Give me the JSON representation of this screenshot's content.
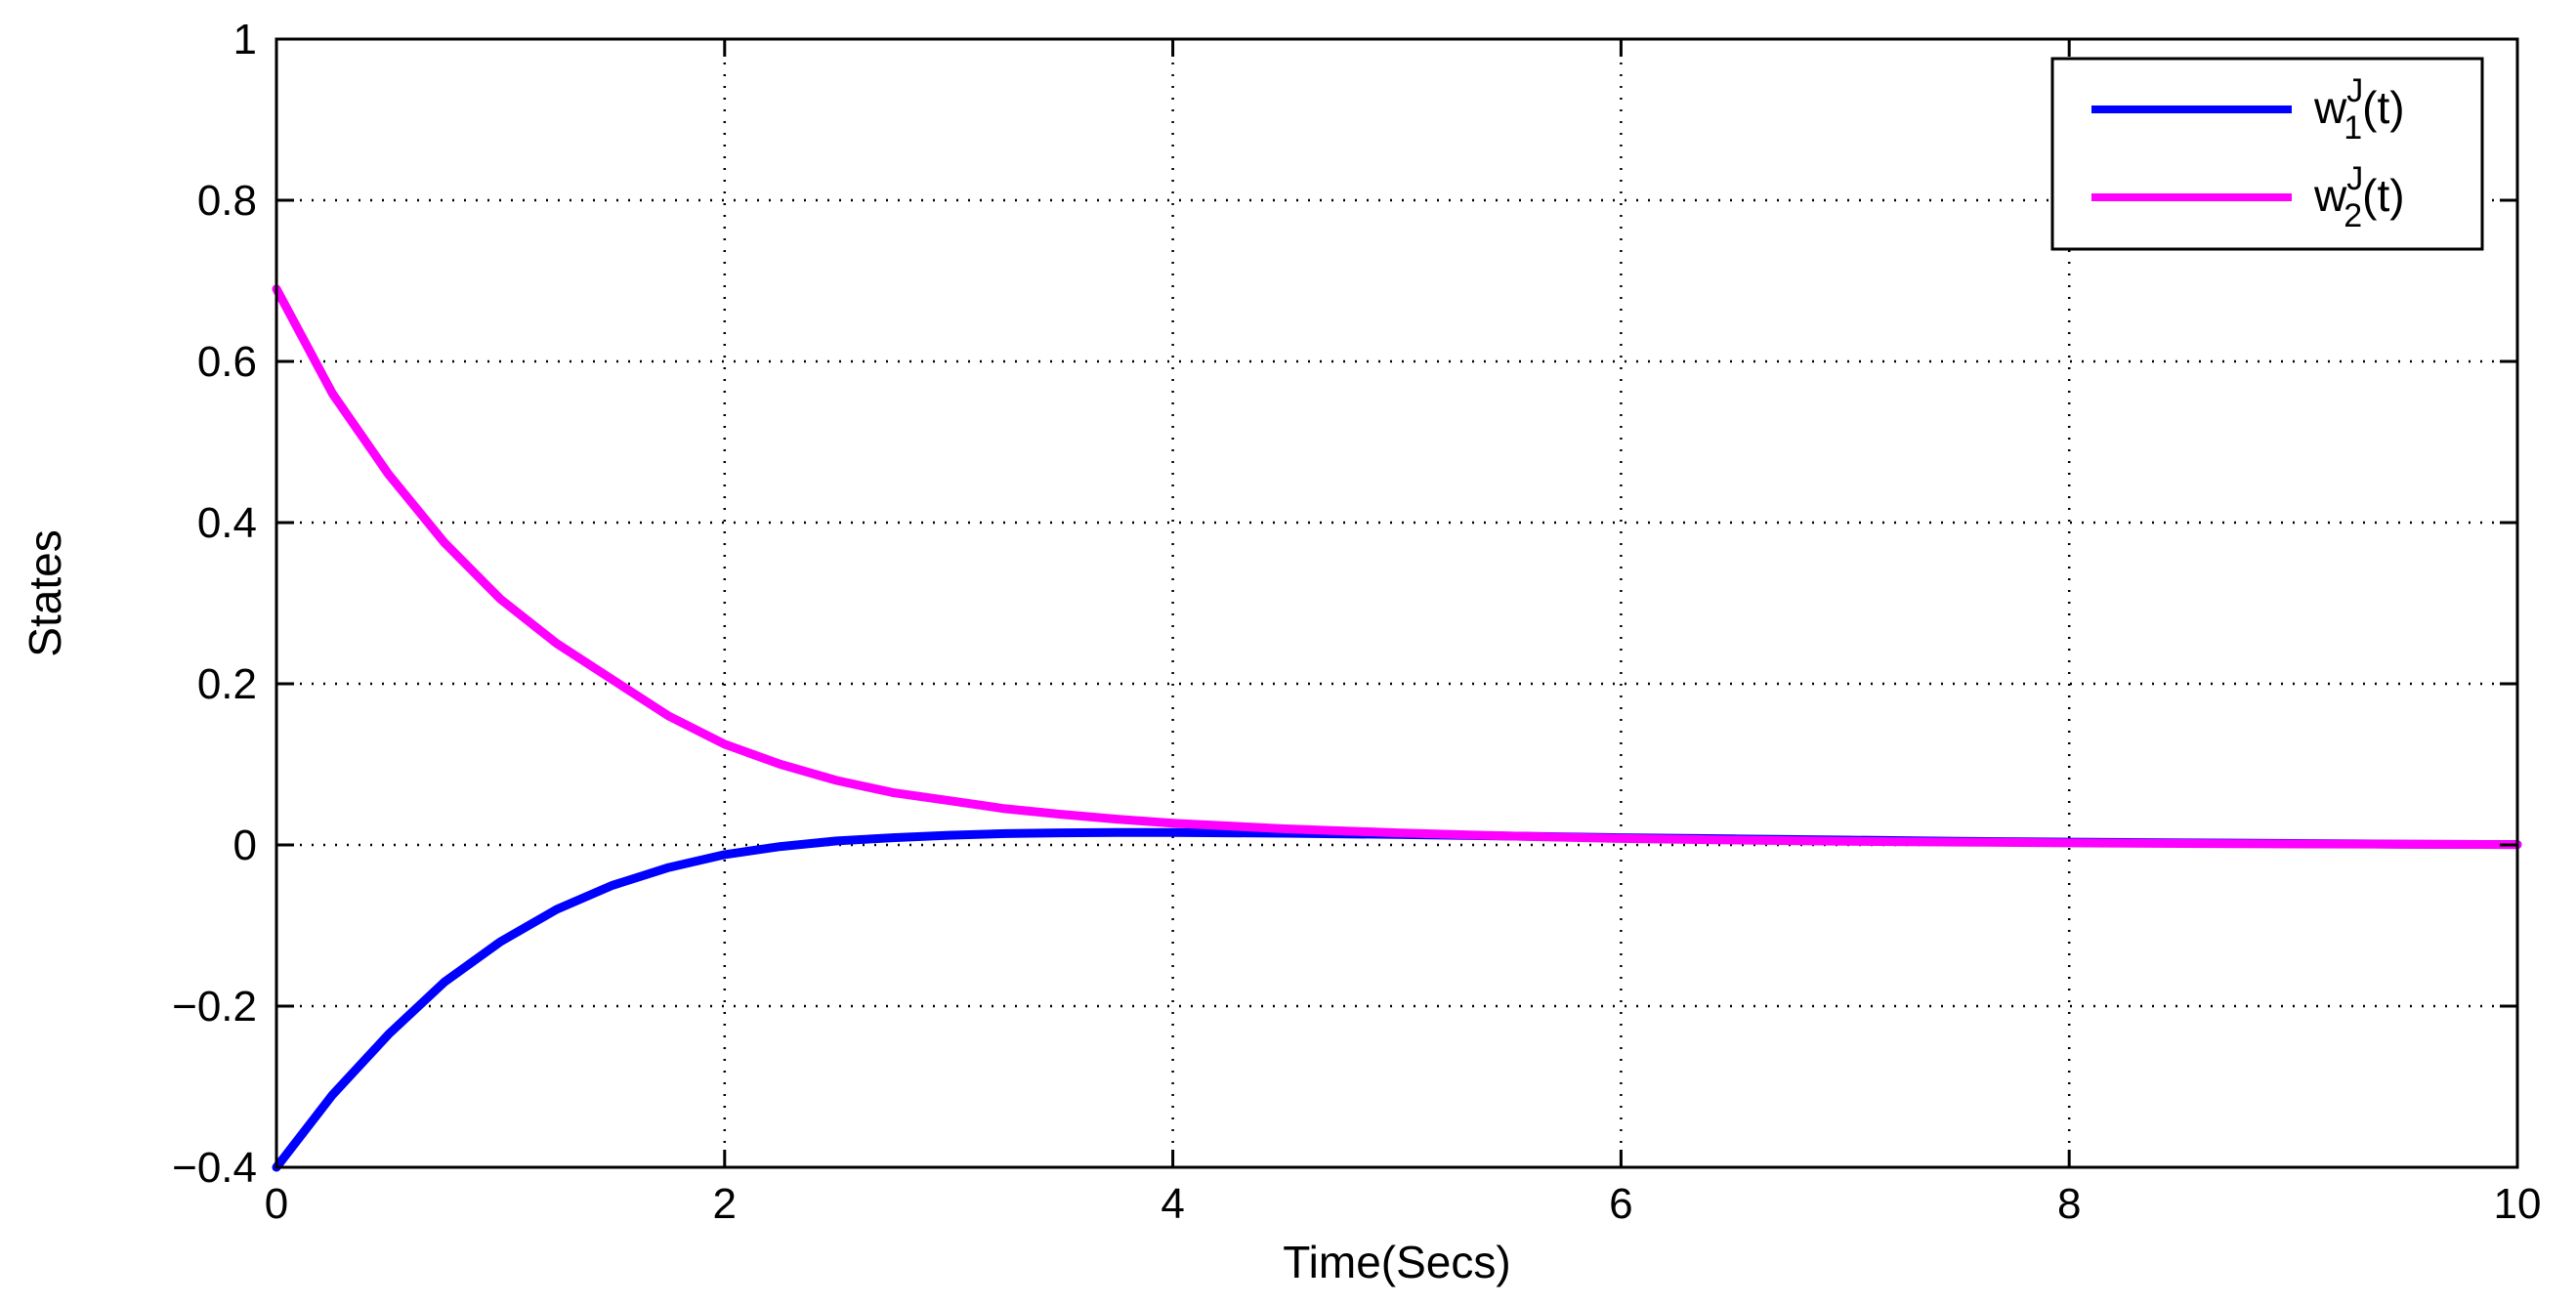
{
  "chart_data": {
    "type": "line",
    "title": "",
    "xlabel": "Time(Secs)",
    "ylabel": "States",
    "xlim": [
      0,
      10
    ],
    "ylim": [
      -0.4,
      1
    ],
    "xticks": [
      0,
      2,
      4,
      6,
      8,
      10
    ],
    "xtick_labels": [
      "0",
      "2",
      "4",
      "6",
      "8",
      "10"
    ],
    "yticks": [
      -0.4,
      -0.2,
      0,
      0.2,
      0.4,
      0.6,
      0.8,
      1
    ],
    "ytick_labels": [
      "−0.4",
      "−0.2",
      "0",
      "0.2",
      "0.4",
      "0.6",
      "0.8",
      "1"
    ],
    "grid": true,
    "grid_style": "dotted",
    "legend_position": "top-right",
    "x": [
      0,
      0.25,
      0.5,
      0.75,
      1,
      1.25,
      1.5,
      1.75,
      2,
      2.25,
      2.5,
      2.75,
      3,
      3.25,
      3.5,
      3.75,
      4,
      4.5,
      5,
      5.5,
      6,
      6.5,
      7,
      7.5,
      8,
      8.5,
      9,
      9.5,
      10
    ],
    "series": [
      {
        "name": "w",
        "legend_sup": "J",
        "legend_sub": "1",
        "legend_suffix": "(t)",
        "color": "#0000ff",
        "values": [
          -0.4,
          -0.31,
          -0.235,
          -0.17,
          -0.12,
          -0.08,
          -0.05,
          -0.028,
          -0.012,
          -0.002,
          0.005,
          0.009,
          0.012,
          0.014,
          0.015,
          0.0155,
          0.0155,
          0.0145,
          0.013,
          0.011,
          0.009,
          0.0075,
          0.006,
          0.0045,
          0.0035,
          0.0025,
          0.0018,
          0.001,
          0.0005
        ]
      },
      {
        "name": "w",
        "legend_sup": "J",
        "legend_sub": "2",
        "legend_suffix": "(t)",
        "color": "#ff00ff",
        "values": [
          0.69,
          0.56,
          0.46,
          0.375,
          0.305,
          0.25,
          0.205,
          0.16,
          0.125,
          0.1,
          0.08,
          0.065,
          0.055,
          0.045,
          0.038,
          0.032,
          0.027,
          0.02,
          0.015,
          0.011,
          0.008,
          0.006,
          0.0045,
          0.0035,
          0.0025,
          0.0018,
          0.0012,
          0.0008,
          0.0005
        ]
      }
    ]
  }
}
